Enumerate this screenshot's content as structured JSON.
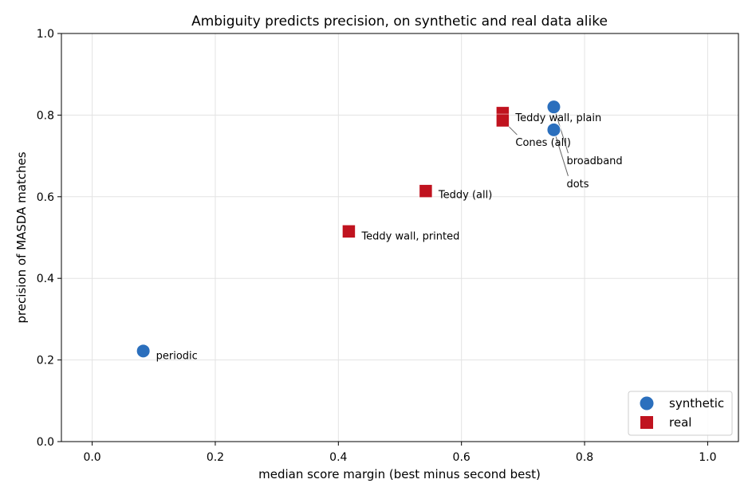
{
  "chart_data": {
    "type": "scatter",
    "title": "Ambiguity predicts precision, on synthetic and real data alike",
    "xlabel": "median score margin (best minus second best)",
    "ylabel": "precision of MASDA matches",
    "xlim": [
      -0.05,
      1.05
    ],
    "ylim": [
      0.0,
      1.0
    ],
    "x_ticks": [
      0.0,
      0.2,
      0.4,
      0.6,
      0.8,
      1.0
    ],
    "y_ticks": [
      0.0,
      0.2,
      0.4,
      0.6,
      0.8,
      1.0
    ],
    "grid": true,
    "legend_position": "bottom-right",
    "colors": {
      "synthetic": "#2b6fbd",
      "real": "#c0131f"
    },
    "series": [
      {
        "name": "synthetic",
        "marker": "circle",
        "points": [
          {
            "x": 0.083,
            "y": 0.222,
            "label": "periodic"
          },
          {
            "x": 0.75,
            "y": 0.82,
            "label": "broadband"
          },
          {
            "x": 0.75,
            "y": 0.764,
            "label": "dots"
          }
        ]
      },
      {
        "name": "real",
        "marker": "square",
        "points": [
          {
            "x": 0.417,
            "y": 0.515,
            "label": "Teddy wall, printed"
          },
          {
            "x": 0.542,
            "y": 0.614,
            "label": "Teddy (all)"
          },
          {
            "x": 0.667,
            "y": 0.805,
            "label": "Teddy wall, plain"
          },
          {
            "x": 0.667,
            "y": 0.787,
            "label": "Cones (all)"
          }
        ]
      }
    ]
  }
}
